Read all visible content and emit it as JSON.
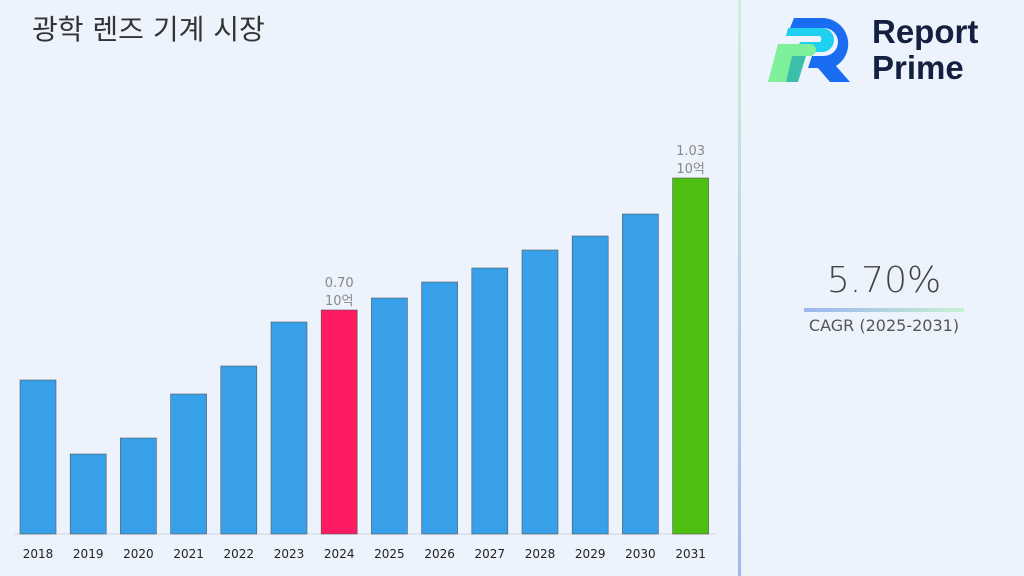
{
  "title": "광학 렌즈 기계 시장",
  "logo": {
    "line1": "Report",
    "line2": "Prime"
  },
  "cagr": {
    "value": "5.70%",
    "label": "CAGR (2025-2031)"
  },
  "colors": {
    "default_bar": "#38a0e8",
    "highlight_2024": "#ff1a62",
    "highlight_2031": "#4cbf10"
  },
  "chart_data": {
    "type": "bar",
    "title": "광학 렌즈 기계 시장",
    "categories": [
      "2018",
      "2019",
      "2020",
      "2021",
      "2022",
      "2023",
      "2024",
      "2025",
      "2026",
      "2027",
      "2028",
      "2029",
      "2030",
      "2031"
    ],
    "values": [
      0.525,
      0.34,
      0.38,
      0.49,
      0.56,
      0.67,
      0.7,
      0.73,
      0.77,
      0.805,
      0.85,
      0.885,
      0.94,
      1.03
    ],
    "unit": "10억",
    "data_labels": {
      "2024": "0.70",
      "2031": "1.03"
    },
    "ylim": [
      0.14,
      1.1
    ],
    "grid": false,
    "xlabel": "",
    "ylabel": ""
  }
}
